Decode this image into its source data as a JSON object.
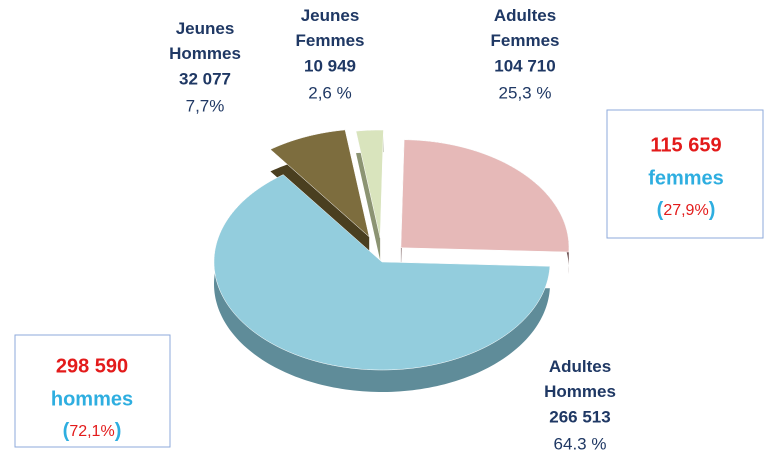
{
  "chart_data": {
    "type": "pie",
    "categories": [
      "Jeunes Hommes",
      "Jeunes Femmes",
      "Adultes Femmes",
      "Adultes Hommes"
    ],
    "counts": [
      "32 077",
      "10 949",
      "104 710",
      "266 513"
    ],
    "values": [
      7.7,
      2.6,
      25.3,
      64.3
    ],
    "value_labels": [
      "7,7%",
      "2,6 %",
      "25,3 %",
      "64.3 %"
    ],
    "colors": [
      "#7d6d3e",
      "#d9e4bd",
      "#e6b9b8",
      "#93cddd"
    ],
    "side_colors": [
      "#4a3f20",
      "#8c9473",
      "#6e5252",
      "#5f8c99"
    ],
    "totals": [
      {
        "count": "115 659",
        "name": "femmes",
        "brackets": [
          "(",
          ")"
        ],
        "percent": "27,9%"
      },
      {
        "count": "298 590",
        "name": "hommes",
        "brackets": [
          "(",
          ")"
        ],
        "percent": "72,1%"
      }
    ]
  }
}
